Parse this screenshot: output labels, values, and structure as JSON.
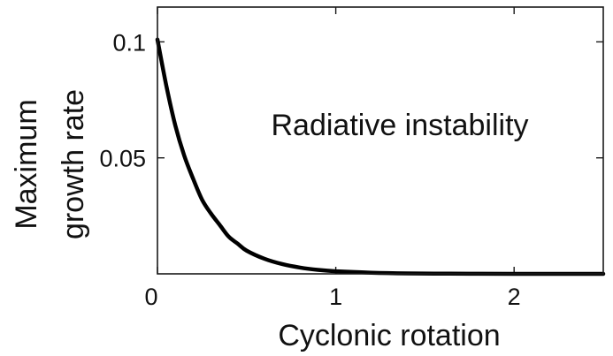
{
  "chart_data": {
    "type": "line",
    "title": "",
    "xlabel": "Cyclonic rotation",
    "ylabel_lines": [
      "Maximum",
      "growth rate"
    ],
    "annotation": "Radiative instability",
    "xlim": [
      0,
      2.5
    ],
    "ylim": [
      0,
      0.115
    ],
    "grid": false,
    "legend": "none",
    "x_ticks": [
      {
        "value": 0,
        "label": "0"
      },
      {
        "value": 1,
        "label": "1"
      },
      {
        "value": 2,
        "label": "2"
      }
    ],
    "y_ticks": [
      {
        "value": 0.05,
        "label": "0.05"
      },
      {
        "value": 0.1,
        "label": "0.1"
      }
    ],
    "series": [
      {
        "color": "#000000",
        "x": [
          0,
          0.05,
          0.1,
          0.15,
          0.2,
          0.25,
          0.3,
          0.35,
          0.4,
          0.45,
          0.5,
          0.6,
          0.7,
          0.8,
          0.9,
          1.0,
          1.2,
          1.4,
          1.6,
          1.8,
          2.0,
          2.2,
          2.5
        ],
        "y": [
          0.101,
          0.081,
          0.064,
          0.051,
          0.041,
          0.032,
          0.026,
          0.021,
          0.016,
          0.013,
          0.01,
          0.0065,
          0.0042,
          0.0027,
          0.0017,
          0.0011,
          0.0005,
          0.0002,
          0.0001,
          5e-05,
          2e-05,
          1e-05,
          0.0
        ]
      }
    ]
  }
}
